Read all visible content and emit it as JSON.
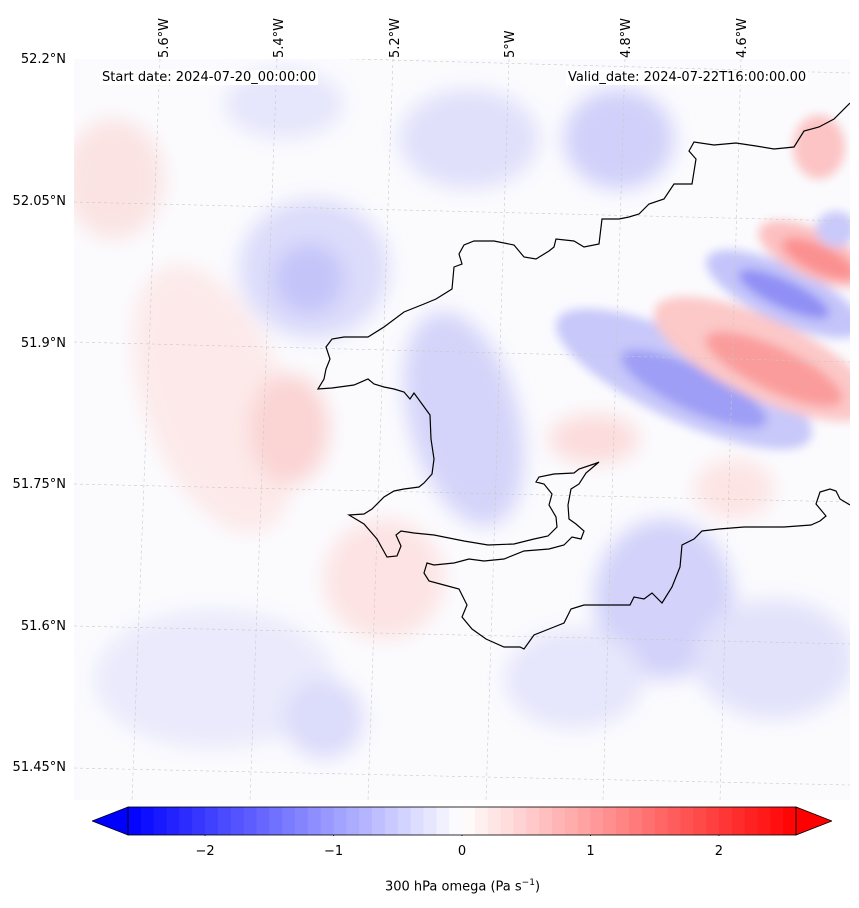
{
  "header": {
    "start_date": "Start date: 2024-07-20_00:00:00",
    "valid_date": "Valid_date: 2024-07-22T16:00:00.00"
  },
  "map": {
    "variable_label_prefix": "300 hPa omega (Pa s",
    "variable_label_exp": "−1",
    "variable_label_suffix": ")",
    "lat_ticks": [
      "52.2°N",
      "52.05°N",
      "51.9°N",
      "51.75°N",
      "51.6°N",
      "51.45°N"
    ],
    "lon_ticks": [
      "5.6°W",
      "5.4°W",
      "5.2°W",
      "5°W",
      "4.8°W",
      "4.6°W"
    ],
    "gridlines": true,
    "coastline": true,
    "colormap": "bwr",
    "colorbar": {
      "orientation": "horizontal",
      "vmin": -2.6,
      "vmax": 2.6,
      "extend": "both",
      "ticks": [
        "−2",
        "−1",
        "0",
        "1",
        "2"
      ],
      "tick_values": [
        -2,
        -1,
        0,
        1,
        2
      ]
    }
  }
}
